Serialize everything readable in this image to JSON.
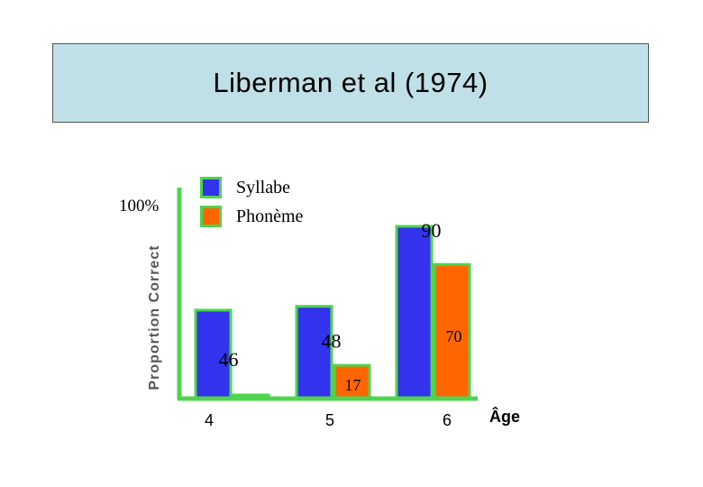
{
  "title": "Liberman et al (1974)",
  "chart_data": {
    "type": "bar",
    "title": "Liberman et al (1974)",
    "ylabel": "Proportion Correct",
    "ytick_label": "100%",
    "xlabel": "Âge",
    "categories": [
      "4",
      "5",
      "6"
    ],
    "series": [
      {
        "name": "Syllabe",
        "color": "#3333ee",
        "values": [
          46,
          48,
          90
        ]
      },
      {
        "name": "Phonème",
        "color": "#ff6600",
        "values": [
          0,
          17,
          70
        ]
      }
    ],
    "value_labels": [
      [
        "46",
        "48",
        "90"
      ],
      [
        "",
        "17",
        "70"
      ]
    ],
    "ylim": [
      0,
      100
    ],
    "bar_border_color": "#4fd44f",
    "axis_color": "#4fd44f",
    "legend_position": "top-left"
  }
}
